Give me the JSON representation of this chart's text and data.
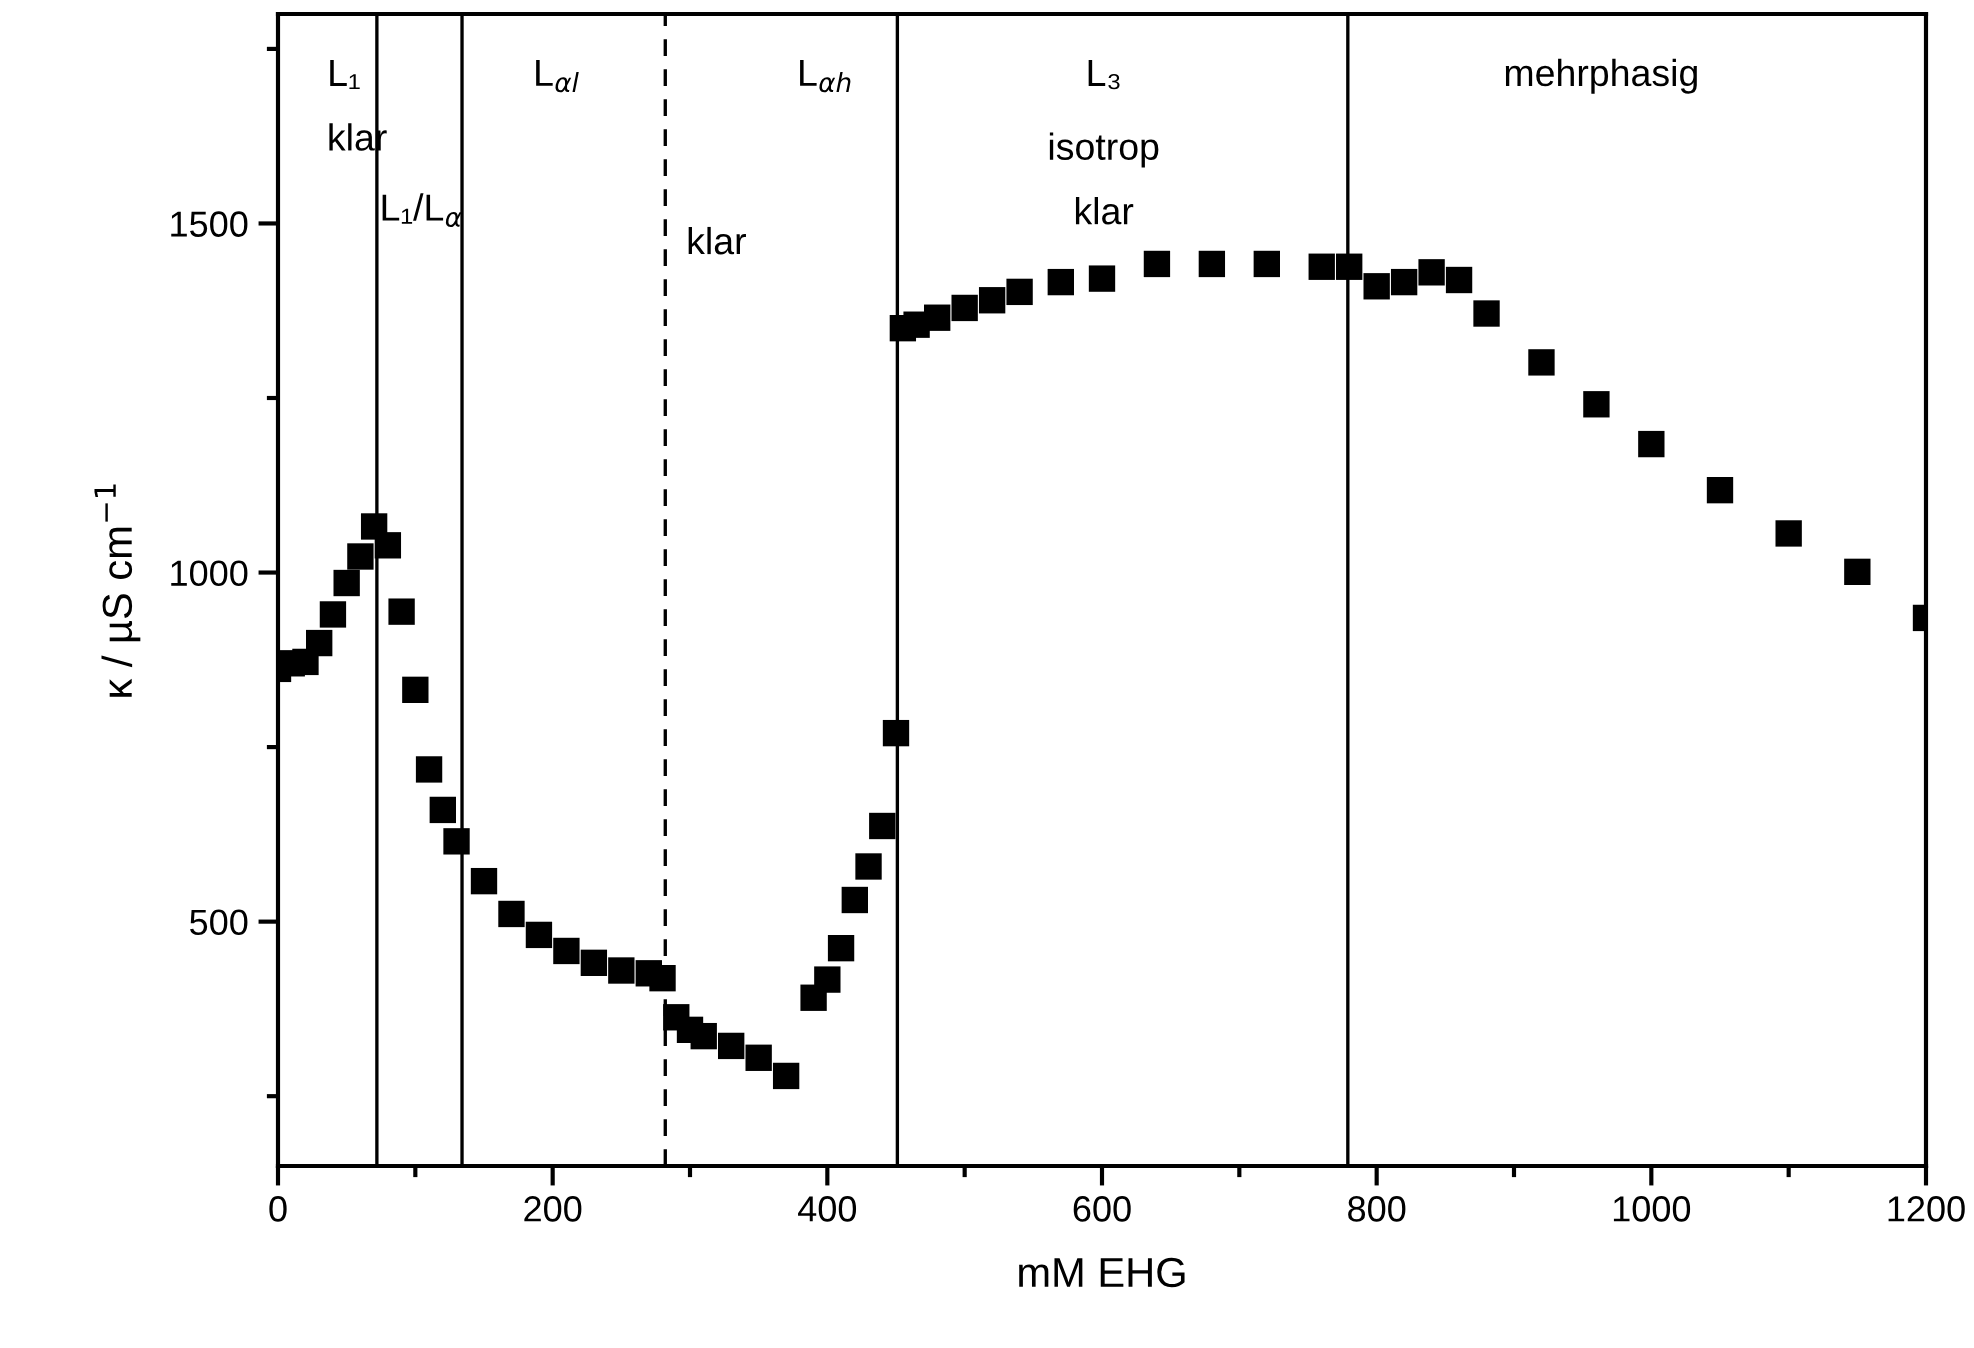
{
  "chart_data": {
    "type": "scatter",
    "xlabel": "mM EHG",
    "ylabel": "κ / µS cm$^{−1}$",
    "x": [
      0,
      10,
      20,
      30,
      40,
      50,
      60,
      70,
      80,
      90,
      100,
      110,
      120,
      130,
      150,
      170,
      190,
      210,
      230,
      250,
      270,
      280,
      290,
      300,
      310,
      330,
      350,
      370,
      390,
      400,
      410,
      420,
      430,
      440,
      450,
      455,
      465,
      480,
      500,
      520,
      540,
      570,
      600,
      640,
      680,
      720,
      760,
      780,
      800,
      820,
      840,
      860,
      880,
      920,
      960,
      1000,
      1050,
      1100,
      1150,
      1200
    ],
    "series": [
      {
        "color": "#000000",
        "marker": "square",
        "values": [
          862,
          870,
          872,
          899,
          940,
          985,
          1023,
          1066,
          1039,
          944,
          832,
          718,
          660,
          615,
          558,
          511,
          481,
          458,
          441,
          430,
          426,
          419,
          363,
          345,
          336,
          322,
          305,
          279,
          391,
          417,
          462,
          531,
          579,
          637,
          770,
          1350,
          1355,
          1365,
          1379,
          1390,
          1402,
          1416,
          1421,
          1442,
          1442,
          1442,
          1438,
          1438,
          1410,
          1416,
          1430,
          1419,
          1371,
          1301,
          1241,
          1184,
          1118,
          1056,
          1001,
          935
        ]
      }
    ],
    "xlim": [
      0,
      1200
    ],
    "ylim": [
      150,
      1800
    ],
    "xticks": [
      0,
      {
        "value": 100,
        "label": null
      },
      200,
      {
        "value": 300,
        "label": null
      },
      400,
      {
        "value": 500,
        "label": null
      },
      600,
      {
        "value": 700,
        "label": null
      },
      800,
      {
        "value": 900,
        "label": null
      },
      1000,
      {
        "value": 1100,
        "label": null
      },
      1200
    ],
    "yticks": [
      {
        "value": 250,
        "label": null
      },
      500,
      {
        "value": 750,
        "label": null
      },
      1000,
      {
        "value": 1250,
        "label": null
      },
      1500,
      {
        "value": 1750,
        "label": null
      }
    ],
    "ref_lines": [
      {
        "axis": "x",
        "value": 72,
        "color": "#000000",
        "line_style": "solid"
      },
      {
        "axis": "x",
        "value": 134,
        "color": "#000000",
        "line_style": "solid"
      },
      {
        "axis": "x",
        "value": 282,
        "color": "#000000",
        "line_style": "dashed"
      },
      {
        "axis": "x",
        "value": 451,
        "color": "#000000",
        "line_style": "solid"
      },
      {
        "axis": "x",
        "value": 779,
        "color": "#000000",
        "line_style": "solid"
      }
    ],
    "annotations": [
      "L₁",
      "klar",
      "L₁/L$_{α}$",
      "L$_{αl}$",
      "klar",
      "L$_{αh}$",
      "L₃",
      "isotrop",
      "klar",
      "mehrphasig"
    ],
    "grid": false,
    "legend": false
  }
}
